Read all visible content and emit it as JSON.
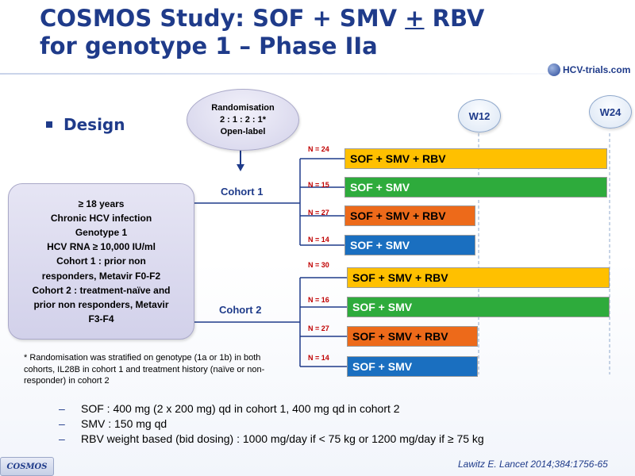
{
  "title": {
    "line1_prefix": "COSMOS Study: SOF + SMV ",
    "plus_minus": "+",
    "line1_suffix": " RBV",
    "line2": "for genotype 1 – Phase IIa"
  },
  "logo": {
    "text": "HCV-trials.com"
  },
  "section": {
    "heading": "Design"
  },
  "randomisation": {
    "line1": "Randomisation",
    "line2": "2 : 1 : 2 : 1*",
    "line3": "Open-label"
  },
  "criteria": [
    "≥ 18 years",
    "Chronic HCV infection",
    "Genotype 1",
    "HCV RNA ≥ 10,000 IU/ml",
    "Cohort 1 : prior non",
    "responders, Metavir F0-F2",
    "Cohort 2 : treatment-naïve and",
    "prior non responders, Metavir",
    "F3-F4"
  ],
  "weeks": {
    "w12": "W12",
    "w24": "W24"
  },
  "cohorts": [
    {
      "label": "Cohort  1",
      "arms": [
        {
          "n": "N = 24",
          "regimen": "SOF + SMV + RBV",
          "duration_weeks": 24,
          "color": "#ffc000"
        },
        {
          "n": "N = 15",
          "regimen": "SOF + SMV",
          "duration_weeks": 24,
          "color": "#2eab3c"
        },
        {
          "n": "N = 27",
          "regimen": "SOF + SMV + RBV",
          "duration_weeks": 12,
          "color": "#ed6a1a"
        },
        {
          "n": "N = 14",
          "regimen": "SOF + SMV",
          "duration_weeks": 12,
          "color": "#1a6fc0"
        }
      ]
    },
    {
      "label": "Cohort  2",
      "arms": [
        {
          "n": "N = 30",
          "regimen": "SOF + SMV + RBV",
          "duration_weeks": 24,
          "color": "#ffc000"
        },
        {
          "n": "N = 16",
          "regimen": "SOF + SMV",
          "duration_weeks": 24,
          "color": "#2eab3c"
        },
        {
          "n": "N = 27",
          "regimen": "SOF + SMV + RBV",
          "duration_weeks": 12,
          "color": "#ed6a1a"
        },
        {
          "n": "N = 14",
          "regimen": "SOF + SMV",
          "duration_weeks": 12,
          "color": "#1a6fc0"
        }
      ]
    }
  ],
  "footnote": "* Randomisation was stratified on genotype (1a or 1b) in both cohorts, IL28B in cohort 1 and treatment history (naïve  or non-responder) in cohort 2",
  "notes": {
    "dash": "–",
    "items": [
      "SOF : 400 mg (2 x 200 mg) qd in cohort 1, 400 mg qd in cohort 2",
      "SMV : 150 mg qd",
      "RBV weight based (bid dosing) : 1000 mg/day  if < 75 kg or 1200 mg/day  if ≥ 75 kg"
    ]
  },
  "footer": {
    "study_tag": "COSMOS",
    "reference": "Lawitz  E. Lancet 2014;384:1756-65"
  }
}
